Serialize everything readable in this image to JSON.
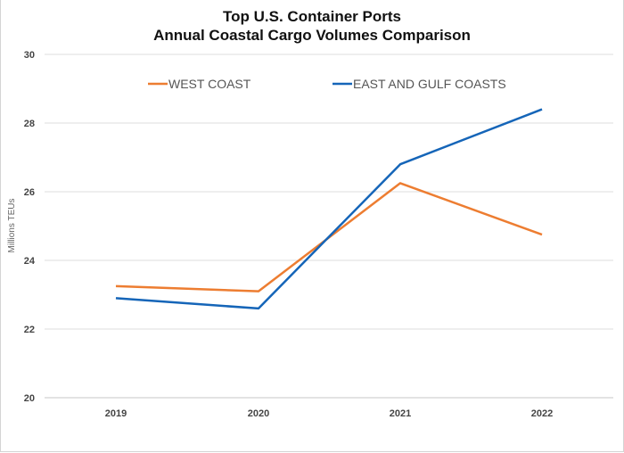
{
  "chart_data": {
    "type": "line",
    "title": "Top U.S. Container Ports",
    "subtitle": "Annual Coastal Cargo Volumes Comparison",
    "xlabel": "",
    "ylabel": "Millions TEUs",
    "categories": [
      "2019",
      "2020",
      "2021",
      "2022"
    ],
    "ylim": [
      20,
      30
    ],
    "yticks": [
      20,
      22,
      24,
      26,
      28,
      30
    ],
    "grid": true,
    "legend_position": "top",
    "series": [
      {
        "name": "WEST COAST",
        "color": "#ed7d31",
        "values": [
          23.25,
          23.1,
          26.25,
          24.75
        ]
      },
      {
        "name": "EAST AND GULF COASTS",
        "color": "#1565b8",
        "values": [
          22.9,
          22.6,
          26.8,
          28.4
        ]
      }
    ]
  }
}
